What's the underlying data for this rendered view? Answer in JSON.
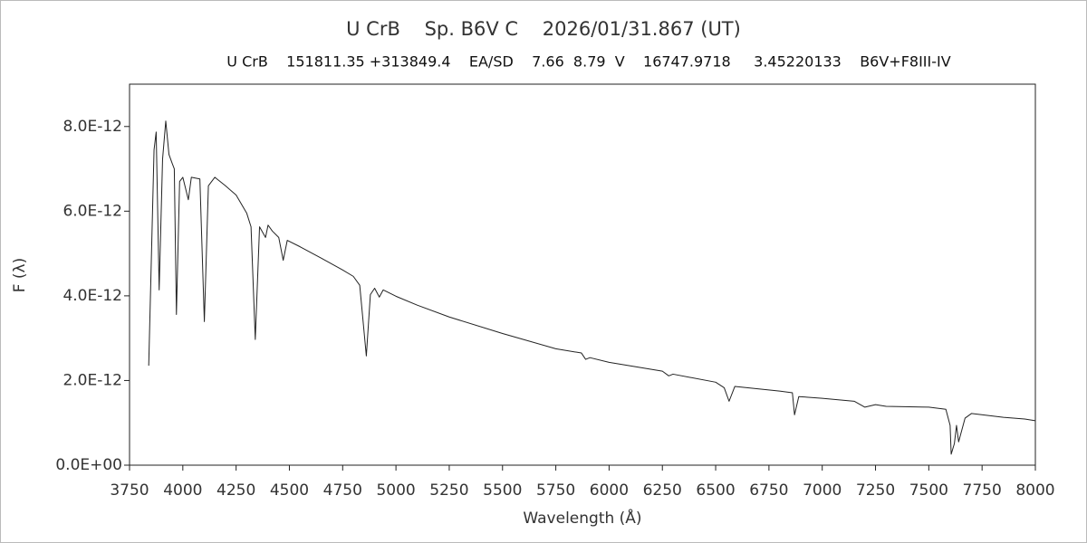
{
  "chart_data": {
    "type": "line",
    "title": "U CrB    Sp. B6V C    2026/01/31.867 (UT)",
    "subtitle": "U CrB    151811.35 +313849.4    EA/SD    7.66  8.79  V    16747.9718     3.45220133    B6V+F8III-IV",
    "x_label": "Wavelength (Å)",
    "y_label": "F (λ)",
    "color": "#222222",
    "xlim": [
      3750,
      8000
    ],
    "xticks": [
      3750,
      4000,
      4250,
      4500,
      4750,
      5000,
      5250,
      5500,
      5750,
      6000,
      6250,
      6500,
      6750,
      7000,
      7250,
      7500,
      7750,
      8000
    ],
    "ylim": [
      0,
      9e-12
    ],
    "yticks": [
      {
        "value": 0,
        "label": "0.0E+00"
      },
      {
        "value": 2e-12,
        "label": "2.0E-12"
      },
      {
        "value": 4e-12,
        "label": "4.0E-12"
      },
      {
        "value": 6e-12,
        "label": "6.0E-12"
      },
      {
        "value": 8e-12,
        "label": "8.0E-12"
      }
    ],
    "grid": false,
    "x": [
      3840,
      3865,
      3875,
      3889,
      3905,
      3920,
      3935,
      3950,
      3960,
      3970,
      3985,
      4000,
      4026,
      4040,
      4080,
      4101,
      4120,
      4150,
      4200,
      4250,
      4300,
      4320,
      4340,
      4360,
      4388,
      4400,
      4420,
      4450,
      4471,
      4490,
      4550,
      4650,
      4750,
      4800,
      4830,
      4861,
      4880,
      4900,
      4922,
      4940,
      5000,
      5100,
      5250,
      5500,
      5750,
      5870,
      5890,
      5910,
      6000,
      6250,
      6280,
      6300,
      6500,
      6540,
      6563,
      6590,
      6800,
      6860,
      6870,
      6890,
      7000,
      7150,
      7200,
      7250,
      7300,
      7500,
      7580,
      7600,
      7605,
      7620,
      7630,
      7640,
      7670,
      7700,
      7850,
      7950,
      8000
    ],
    "values": [
      2.35e-12,
      7.45e-12,
      7.87e-12,
      4.14e-12,
      7.23e-12,
      8.13e-12,
      7.34e-12,
      7.13e-12,
      7e-12,
      3.56e-12,
      6.7e-12,
      6.8e-12,
      6.27e-12,
      6.8e-12,
      6.76e-12,
      3.39e-12,
      6.6e-12,
      6.8e-12,
      6.6e-12,
      6.38e-12,
      5.95e-12,
      5.63e-12,
      2.97e-12,
      5.63e-12,
      5.38e-12,
      5.67e-12,
      5.53e-12,
      5.38e-12,
      4.84e-12,
      5.31e-12,
      5.16e-12,
      4.89e-12,
      4.61e-12,
      4.46e-12,
      4.25e-12,
      2.58e-12,
      4.03e-12,
      4.18e-12,
      3.97e-12,
      4.14e-12,
      3.99e-12,
      3.78e-12,
      3.5e-12,
      3.11e-12,
      2.75e-12,
      2.65e-12,
      2.5e-12,
      2.54e-12,
      2.43e-12,
      2.22e-12,
      2.11e-12,
      2.15e-12,
      1.96e-12,
      1.83e-12,
      1.51e-12,
      1.86e-12,
      1.75e-12,
      1.71e-12,
      1.19e-12,
      1.62e-12,
      1.58e-12,
      1.51e-12,
      1.37e-12,
      1.43e-12,
      1.39e-12,
      1.37e-12,
      1.32e-12,
      9.4e-13,
      2.6e-13,
      5.1e-13,
      9.4e-13,
      5.5e-13,
      1.11e-12,
      1.22e-12,
      1.13e-12,
      1.09e-12,
      1.05e-12
    ]
  }
}
